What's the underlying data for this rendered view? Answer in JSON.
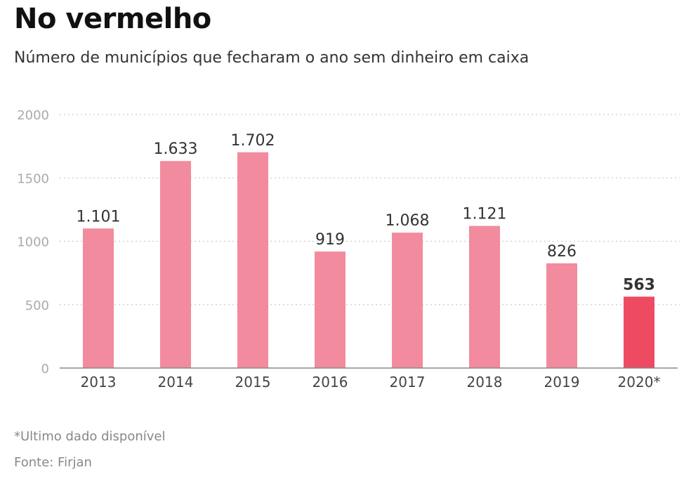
{
  "header": {
    "title": "No vermelho",
    "subtitle": "Número de municípios que fecharam o ano sem dinheiro em caixa"
  },
  "footer": {
    "note": "*Ultimo dado disponível",
    "source": "Fonte: Firjan"
  },
  "chart_data": {
    "type": "bar",
    "categories": [
      "2013",
      "2014",
      "2015",
      "2016",
      "2017",
      "2018",
      "2019",
      "2020*"
    ],
    "values": [
      1101,
      1633,
      1702,
      919,
      1068,
      1121,
      826,
      563
    ],
    "data_labels": [
      "1.101",
      "1.633",
      "1.702",
      "919",
      "1.068",
      "1.121",
      "826",
      "563"
    ],
    "highlight_index": 7,
    "ylim": [
      0,
      2000
    ],
    "yticks": [
      0,
      500,
      1000,
      1500,
      2000
    ],
    "ytick_labels": [
      "0",
      "500",
      "1000",
      "1500",
      "2000"
    ],
    "grid": true,
    "colors": {
      "bar": "#f28b9d",
      "highlight": "#ee4b63"
    }
  }
}
